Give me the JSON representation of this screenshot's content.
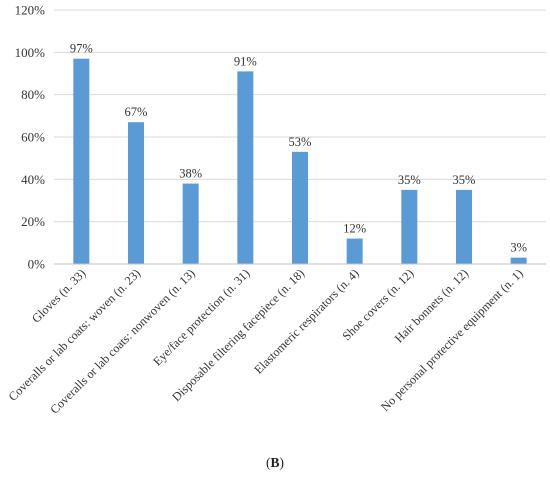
{
  "chart_data": {
    "type": "bar",
    "categories": [
      "Gloves (n. 33)",
      "Coveralls or lab coats: woven (n. 23)",
      "Coveralls or lab coats: nonwoven (n. 13)",
      "Eye/face protection (n. 31)",
      "Disposable filtering facepiece (n. 18)",
      "Elastomeric respirators (n. 4)",
      "Shoe covers (n. 12)",
      "Hair bonnets (n. 12)",
      "No personal protective equipment (n. 1)"
    ],
    "values": [
      97,
      67,
      38,
      91,
      53,
      12,
      35,
      35,
      3
    ],
    "value_labels": [
      "97%",
      "67%",
      "38%",
      "91%",
      "53%",
      "12%",
      "35%",
      "35%",
      "3%"
    ],
    "y_ticks": [
      "0%",
      "20%",
      "40%",
      "60%",
      "80%",
      "100%",
      "120%"
    ],
    "y_tick_values": [
      0,
      20,
      40,
      60,
      80,
      100,
      120
    ],
    "ylim": [
      0,
      120
    ],
    "grid": true,
    "bar_color": "#5B9BD5",
    "grid_color": "#D9D9D9"
  },
  "caption": {
    "open": "(",
    "letter": "B",
    "close": ")"
  }
}
